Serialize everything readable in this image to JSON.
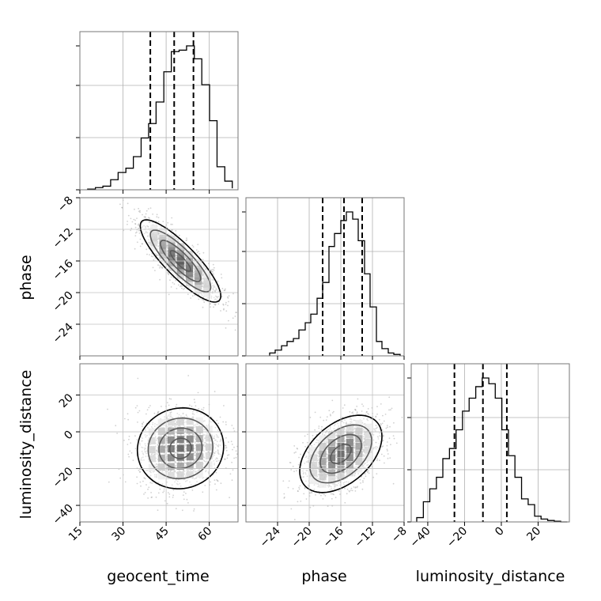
{
  "chart_data": {
    "type": "corner",
    "parameters": [
      "geocent_time",
      "phase",
      "luminosity_distance"
    ],
    "axis_labels": {
      "geocent_time": "geocent_time",
      "phase": "phase",
      "luminosity_distance": "luminosity_distance"
    },
    "ranges": {
      "geocent_time": [
        15,
        70
      ],
      "phase": [
        -28,
        -8
      ],
      "luminosity_distance": [
        -49,
        37
      ]
    },
    "ticks": {
      "geocent_time": [
        15,
        30,
        45,
        60
      ],
      "phase": [
        -24,
        -20,
        -16,
        -12,
        -8
      ],
      "luminosity_distance": [
        -40,
        -20,
        0,
        20
      ]
    },
    "tick_labels": {
      "geocent_time": [
        "15",
        "30",
        "45",
        "60"
      ],
      "phase": [
        "−24",
        "−20",
        "−16",
        "−12",
        "−8"
      ],
      "luminosity_distance": [
        "−40",
        "−20",
        "0",
        "20"
      ]
    },
    "quantiles": {
      "geocent_time": [
        39.5,
        47.8,
        54.5
      ],
      "phase": [
        -18.3,
        -15.6,
        -13.3
      ],
      "luminosity_distance": [
        -25.5,
        -10.0,
        3.0
      ]
    },
    "histograms": {
      "geocent_time": {
        "bin_edges": [
          17.7,
          20.4,
          23.0,
          25.7,
          28.3,
          31.0,
          33.6,
          36.3,
          38.9,
          41.5,
          44.2,
          46.8,
          49.5,
          52.1,
          54.8,
          57.4,
          60.1,
          62.7,
          65.4,
          68.0
        ],
        "counts": [
          0.005,
          0.015,
          0.025,
          0.07,
          0.12,
          0.15,
          0.23,
          0.36,
          0.46,
          0.61,
          0.82,
          0.96,
          0.97,
          1.0,
          0.91,
          0.73,
          0.48,
          0.16,
          0.06,
          0.01
        ]
      },
      "phase": {
        "bin_edges": [
          -25.0,
          -24.3,
          -23.5,
          -22.8,
          -22.0,
          -21.3,
          -20.5,
          -19.8,
          -19.0,
          -18.3,
          -17.5,
          -16.8,
          -16.0,
          -15.3,
          -14.5,
          -13.8,
          -13.0,
          -12.3,
          -11.5,
          -10.8,
          -10.0,
          -9.3,
          -8.5
        ],
        "counts": [
          0.02,
          0.04,
          0.07,
          0.1,
          0.12,
          0.18,
          0.23,
          0.29,
          0.4,
          0.51,
          0.76,
          0.85,
          0.94,
          1.0,
          0.95,
          0.8,
          0.57,
          0.34,
          0.1,
          0.05,
          0.02,
          0.01
        ]
      },
      "luminosity_distance": {
        "bin_edges": [
          -46.0,
          -42.4,
          -38.9,
          -35.3,
          -31.8,
          -28.2,
          -24.6,
          -21.1,
          -17.5,
          -13.9,
          -10.4,
          -6.8,
          -3.3,
          0.3,
          3.9,
          7.4,
          11.0,
          14.6,
          18.1,
          21.6,
          25.2,
          28.8,
          32.3,
          35.9
        ],
        "counts": [
          0.03,
          0.14,
          0.23,
          0.31,
          0.44,
          0.51,
          0.64,
          0.77,
          0.86,
          0.94,
          1.0,
          0.96,
          0.86,
          0.64,
          0.46,
          0.31,
          0.16,
          0.12,
          0.04,
          0.02,
          0.01,
          0.005,
          0.0
        ]
      }
    },
    "joint": [
      {
        "x": "geocent_time",
        "y": "phase",
        "mean": [
          50.0,
          -16.0
        ],
        "sd": [
          7.0,
          2.6
        ],
        "rho": -0.85,
        "levels": [
          0.5,
          1.0,
          1.5,
          2.0
        ]
      },
      {
        "x": "geocent_time",
        "y": "luminosity_distance",
        "mean": [
          50.0,
          -9.0
        ],
        "sd": [
          7.5,
          11.0
        ],
        "rho": 0.05,
        "levels": [
          0.5,
          1.0,
          1.5,
          2.0
        ]
      },
      {
        "x": "phase",
        "y": "luminosity_distance",
        "mean": [
          -16.0,
          -12.0
        ],
        "sd": [
          2.6,
          10.5
        ],
        "rho": 0.45,
        "levels": [
          0.5,
          1.0,
          1.5,
          2.0
        ]
      }
    ],
    "grid": true
  }
}
